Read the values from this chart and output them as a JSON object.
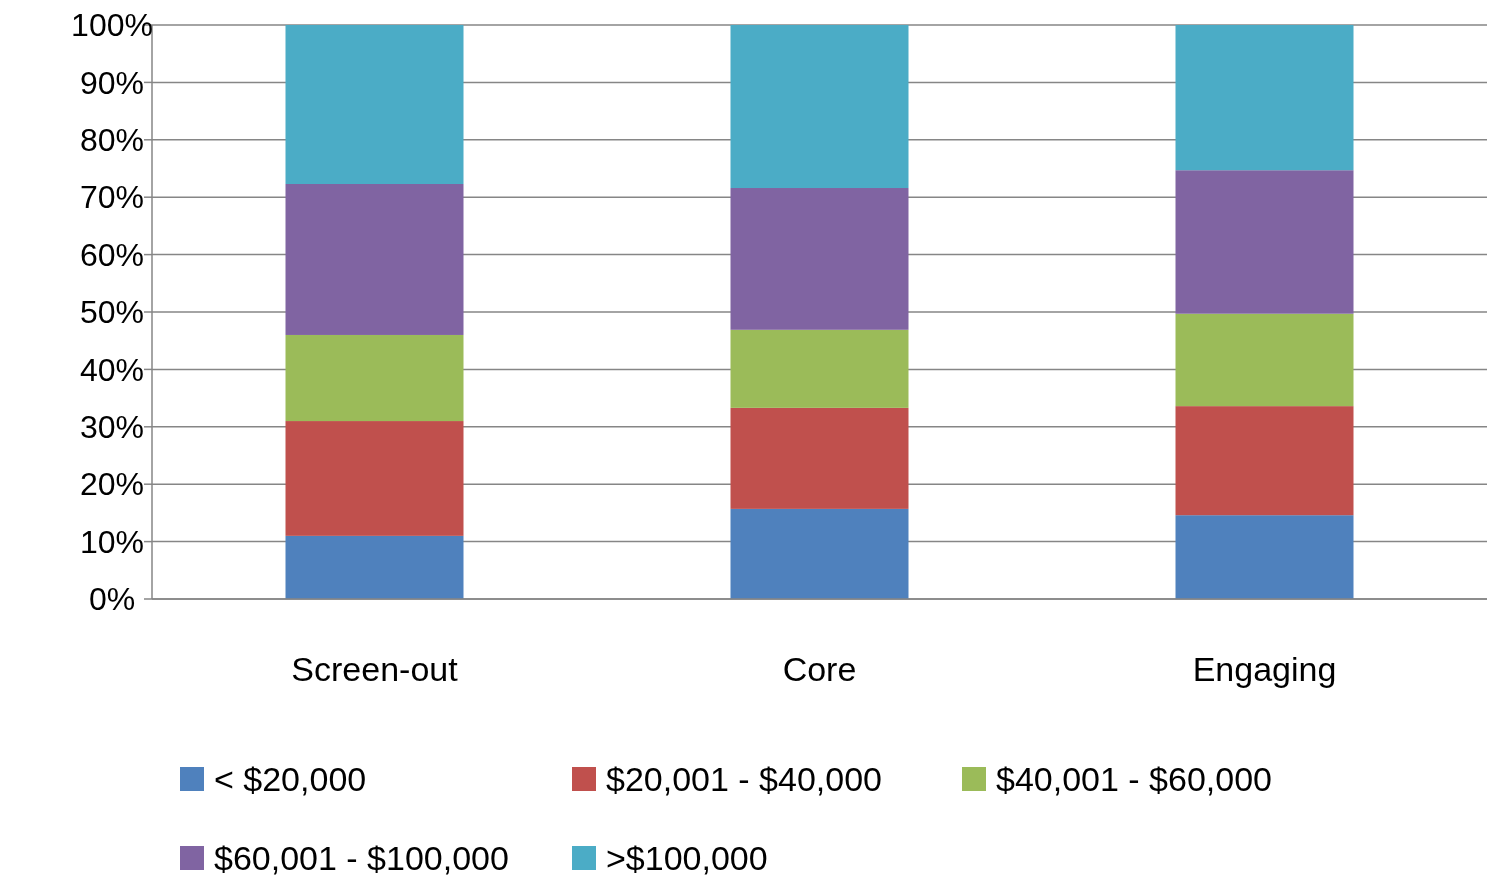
{
  "chart_data": {
    "type": "bar",
    "stacked": true,
    "categories": [
      "Screen-out",
      "Core",
      "Engaging"
    ],
    "series": [
      {
        "name": "< $20,000",
        "color": "#4f81bd",
        "values": [
          11,
          15.7,
          14.6
        ]
      },
      {
        "name": "$20,001 - $40,000",
        "color": "#c0504d",
        "values": [
          20,
          17.6,
          19
        ]
      },
      {
        "name": "$40,001 - $60,000",
        "color": "#9bbb59",
        "values": [
          15,
          13.6,
          16.1
        ]
      },
      {
        "name": "$60,001 - $100,000",
        "color": "#8064a2",
        "values": [
          26.3,
          24.7,
          25
        ]
      },
      {
        "name": ">$100,000",
        "color": "#4bacc6",
        "values": [
          27.7,
          28.4,
          25.3
        ]
      }
    ],
    "ylim": [
      0,
      100
    ],
    "yticks": [
      {
        "value": 0,
        "label": "0%"
      },
      {
        "value": 10,
        "label": "10%"
      },
      {
        "value": 20,
        "label": "20%"
      },
      {
        "value": 30,
        "label": "30%"
      },
      {
        "value": 40,
        "label": "40%"
      },
      {
        "value": 50,
        "label": "50%"
      },
      {
        "value": 60,
        "label": "60%"
      },
      {
        "value": 70,
        "label": "70%"
      },
      {
        "value": 80,
        "label": "80%"
      },
      {
        "value": 90,
        "label": "90%"
      },
      {
        "value": 100,
        "label": "100%"
      }
    ],
    "grid": "y",
    "legend": "bottom"
  }
}
